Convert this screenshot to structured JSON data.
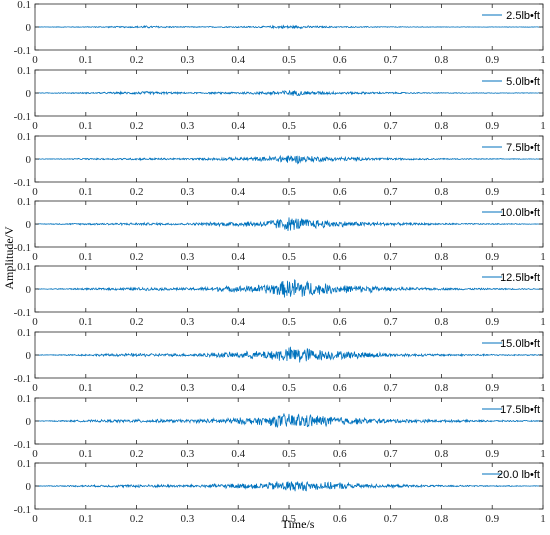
{
  "chart_data": {
    "type": "line",
    "xlabel": "Time/s",
    "ylabel": "Amplitude/V",
    "xlim": [
      0,
      1
    ],
    "ylim": [
      -0.1,
      0.1
    ],
    "x_ticks": [
      "0",
      "0.1",
      "0.2",
      "0.3",
      "0.4",
      "0.5",
      "0.6",
      "0.7",
      "0.8",
      "0.9",
      "1"
    ],
    "y_ticks": [
      "-0.1",
      "0",
      "0.1"
    ],
    "legend_position": "top-right",
    "line_color": "#0072bd",
    "axis_color": "#262626",
    "grid": false,
    "series": [
      {
        "name": "2.5lb•ft",
        "t": [
          0,
          0.1,
          0.2,
          0.215,
          0.3,
          0.45,
          0.5,
          0.55,
          0.6,
          0.7,
          0.8,
          1
        ],
        "envelope": [
          0.001,
          0.002,
          0.004,
          0.006,
          0.002,
          0.004,
          0.008,
          0.005,
          0.003,
          0.002,
          0.001,
          0.001
        ]
      },
      {
        "name": "5.0lb•ft",
        "t": [
          0,
          0.1,
          0.2,
          0.215,
          0.3,
          0.45,
          0.5,
          0.55,
          0.6,
          0.7,
          0.8,
          1
        ],
        "envelope": [
          0.001,
          0.003,
          0.006,
          0.008,
          0.003,
          0.007,
          0.014,
          0.009,
          0.006,
          0.004,
          0.002,
          0.001
        ]
      },
      {
        "name": "7.5lb•ft",
        "t": [
          0,
          0.1,
          0.2,
          0.3,
          0.45,
          0.5,
          0.55,
          0.6,
          0.66,
          0.7,
          0.8,
          1
        ],
        "envelope": [
          0.001,
          0.003,
          0.005,
          0.004,
          0.01,
          0.022,
          0.014,
          0.01,
          0.007,
          0.005,
          0.003,
          0.001
        ]
      },
      {
        "name": "10.0lb•ft",
        "t": [
          0,
          0.1,
          0.2,
          0.3,
          0.45,
          0.5,
          0.55,
          0.6,
          0.66,
          0.7,
          0.8,
          1
        ],
        "envelope": [
          0.001,
          0.004,
          0.006,
          0.005,
          0.015,
          0.035,
          0.022,
          0.014,
          0.01,
          0.007,
          0.004,
          0.001
        ]
      },
      {
        "name": "12.5lb•ft",
        "t": [
          0,
          0.1,
          0.2,
          0.3,
          0.45,
          0.52,
          0.55,
          0.6,
          0.66,
          0.7,
          0.8,
          1
        ],
        "envelope": [
          0.001,
          0.004,
          0.007,
          0.006,
          0.02,
          0.055,
          0.03,
          0.02,
          0.016,
          0.008,
          0.005,
          0.002
        ]
      },
      {
        "name": "15.0lb•ft",
        "t": [
          0,
          0.1,
          0.2,
          0.3,
          0.45,
          0.52,
          0.55,
          0.6,
          0.66,
          0.7,
          0.8,
          1
        ],
        "envelope": [
          0.001,
          0.004,
          0.008,
          0.006,
          0.02,
          0.045,
          0.028,
          0.02,
          0.015,
          0.008,
          0.005,
          0.002
        ]
      },
      {
        "name": "17.5lb•ft",
        "t": [
          0,
          0.1,
          0.2,
          0.3,
          0.45,
          0.5,
          0.55,
          0.6,
          0.66,
          0.7,
          0.8,
          1
        ],
        "envelope": [
          0.001,
          0.005,
          0.008,
          0.007,
          0.02,
          0.04,
          0.03,
          0.02,
          0.013,
          0.01,
          0.006,
          0.002
        ]
      },
      {
        "name": "20.0 lb•ft",
        "t": [
          0,
          0.1,
          0.2,
          0.3,
          0.45,
          0.5,
          0.55,
          0.6,
          0.66,
          0.7,
          0.8,
          1
        ],
        "envelope": [
          0.001,
          0.004,
          0.007,
          0.006,
          0.015,
          0.03,
          0.02,
          0.016,
          0.01,
          0.007,
          0.004,
          0.001
        ]
      }
    ]
  }
}
